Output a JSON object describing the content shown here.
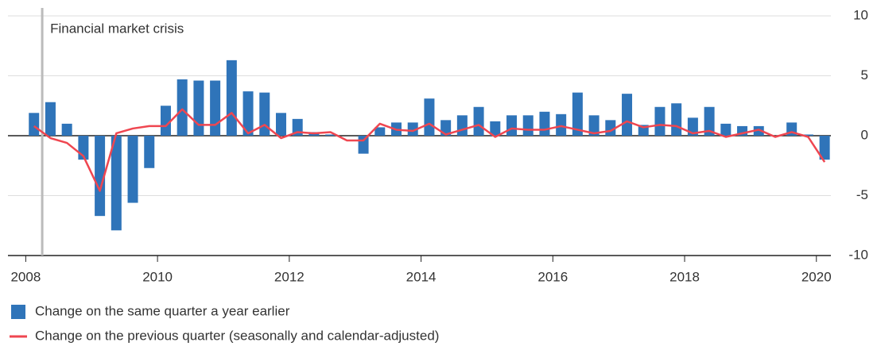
{
  "chart_data": {
    "type": "bar_line",
    "annotation": {
      "text": "Financial market crisis",
      "x": 2008.25
    },
    "x": [
      2008.125,
      2008.375,
      2008.625,
      2008.875,
      2009.125,
      2009.375,
      2009.625,
      2009.875,
      2010.125,
      2010.375,
      2010.625,
      2010.875,
      2011.125,
      2011.375,
      2011.625,
      2011.875,
      2012.125,
      2012.375,
      2012.625,
      2012.875,
      2013.125,
      2013.375,
      2013.625,
      2013.875,
      2014.125,
      2014.375,
      2014.625,
      2014.875,
      2015.125,
      2015.375,
      2015.625,
      2015.875,
      2016.125,
      2016.375,
      2016.625,
      2016.875,
      2017.125,
      2017.375,
      2017.625,
      2017.875,
      2018.125,
      2018.375,
      2018.625,
      2018.875,
      2019.125,
      2019.375,
      2019.625,
      2019.875,
      2020.125
    ],
    "series": [
      {
        "name": "Change on the same quarter a year earlier",
        "type": "bar",
        "color": "#2f74b9",
        "values": [
          1.9,
          2.8,
          1.0,
          -2.0,
          -6.7,
          -7.9,
          -5.6,
          -2.7,
          2.5,
          4.7,
          4.6,
          4.6,
          6.3,
          3.7,
          3.6,
          1.9,
          1.4,
          0.3,
          0.1,
          0.0,
          -1.5,
          0.7,
          1.1,
          1.1,
          3.1,
          1.3,
          1.7,
          2.4,
          1.2,
          1.7,
          1.7,
          2.0,
          1.8,
          3.6,
          1.7,
          1.3,
          3.5,
          0.9,
          2.4,
          2.7,
          1.5,
          2.4,
          1.0,
          0.8,
          0.8,
          0.0,
          1.1,
          0.1,
          -2.0
        ]
      },
      {
        "name": "Change on the previous quarter (seasonally and calendar-adjusted)",
        "type": "line",
        "color": "#ef4650",
        "values": [
          0.8,
          -0.2,
          -0.6,
          -1.7,
          -4.6,
          0.2,
          0.6,
          0.8,
          0.8,
          2.2,
          0.9,
          0.9,
          1.9,
          0.2,
          0.9,
          -0.2,
          0.3,
          0.2,
          0.3,
          -0.4,
          -0.4,
          1.0,
          0.5,
          0.4,
          1.0,
          0.1,
          0.5,
          0.9,
          -0.1,
          0.6,
          0.5,
          0.5,
          0.8,
          0.5,
          0.2,
          0.4,
          1.2,
          0.7,
          0.9,
          0.8,
          0.2,
          0.4,
          -0.1,
          0.2,
          0.5,
          -0.1,
          0.3,
          -0.1,
          -2.2
        ]
      }
    ],
    "xlim": [
      2007.73,
      2020.22
    ],
    "xticks": [
      2008,
      2010,
      2012,
      2014,
      2016,
      2018,
      2020
    ],
    "ylim": [
      -10,
      10
    ],
    "yticks": [
      10,
      5,
      0,
      -5,
      -10
    ],
    "grid": true
  }
}
